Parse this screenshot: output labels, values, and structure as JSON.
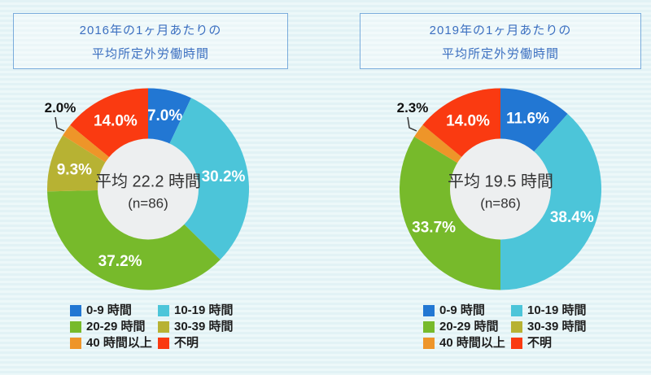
{
  "palette": {
    "blue": "#2277d3",
    "cyan": "#4cc5d9",
    "green": "#77ba2b",
    "olive": "#b7b233",
    "orange": "#ee9529",
    "red": "#fa3a11",
    "donut_hole": "#edeff0",
    "title_border": "#7aacdc",
    "title_text": "#3b6fc0",
    "background": "#e2f2f5"
  },
  "charts": [
    {
      "title_line1": "2016年の1ヶ月あたりの",
      "title_line2": "平均所定外労働時間",
      "center_line1": "平均 22.2 時間",
      "center_line2": "(n=86)",
      "segments": [
        {
          "label": "0-9 時間",
          "value": 7.0,
          "display": "7.0%",
          "color": "#2277d3"
        },
        {
          "label": "10-19 時間",
          "value": 30.2,
          "display": "30.2%",
          "color": "#4cc5d9"
        },
        {
          "label": "20-29 時間",
          "value": 37.2,
          "display": "37.2%",
          "color": "#77ba2b"
        },
        {
          "label": "30-39 時間",
          "value": 9.3,
          "display": "9.3%",
          "color": "#b7b233"
        },
        {
          "label": "40 時間以上",
          "value": 2.0,
          "display": "2.0%",
          "color": "#ee9529",
          "label_outside": true
        },
        {
          "label": "不明",
          "value": 14.0,
          "display": "14.0%",
          "color": "#fa3a11"
        }
      ]
    },
    {
      "title_line1": "2019年の1ヶ月あたりの",
      "title_line2": "平均所定外労働時間",
      "center_line1": "平均 19.5 時間",
      "center_line2": "(n=86)",
      "segments": [
        {
          "label": "0-9 時間",
          "value": 11.6,
          "display": "11.6%",
          "color": "#2277d3"
        },
        {
          "label": "10-19 時間",
          "value": 38.4,
          "display": "38.4%",
          "color": "#4cc5d9"
        },
        {
          "label": "20-29 時間",
          "value": 33.7,
          "display": "33.7%",
          "color": "#77ba2b"
        },
        {
          "label": "30-39 時間",
          "value": 0.0,
          "display": "0.0%",
          "color": "#b7b233"
        },
        {
          "label": "40 時間以上",
          "value": 2.3,
          "display": "2.3%",
          "color": "#ee9529",
          "label_outside": true
        },
        {
          "label": "不明",
          "value": 14.0,
          "display": "14.0%",
          "color": "#fa3a11"
        }
      ]
    }
  ],
  "chart_data": [
    {
      "type": "pie",
      "subtype": "donut",
      "title": "2016年の1ヶ月あたりの平均所定外労働時間",
      "categories": [
        "0-9 時間",
        "10-19 時間",
        "20-29 時間",
        "30-39 時間",
        "40 時間以上",
        "不明"
      ],
      "values": [
        7.0,
        30.2,
        37.2,
        9.3,
        2.0,
        14.0
      ],
      "unit": "%",
      "center_label": "平均 22.2 時間 (n=86)",
      "colors": [
        "#2277d3",
        "#4cc5d9",
        "#77ba2b",
        "#b7b233",
        "#ee9529",
        "#fa3a11"
      ],
      "legend_position": "bottom",
      "start_angle": "top",
      "direction": "clockwise"
    },
    {
      "type": "pie",
      "subtype": "donut",
      "title": "2019年の1ヶ月あたりの平均所定外労働時間",
      "categories": [
        "0-9 時間",
        "10-19 時間",
        "20-29 時間",
        "30-39 時間",
        "40 時間以上",
        "不明"
      ],
      "values": [
        11.6,
        38.4,
        33.7,
        0.0,
        2.3,
        14.0
      ],
      "unit": "%",
      "center_label": "平均 19.5 時間 (n=86)",
      "colors": [
        "#2277d3",
        "#4cc5d9",
        "#77ba2b",
        "#b7b233",
        "#ee9529",
        "#fa3a11"
      ],
      "legend_position": "bottom",
      "start_angle": "top",
      "direction": "clockwise"
    }
  ]
}
